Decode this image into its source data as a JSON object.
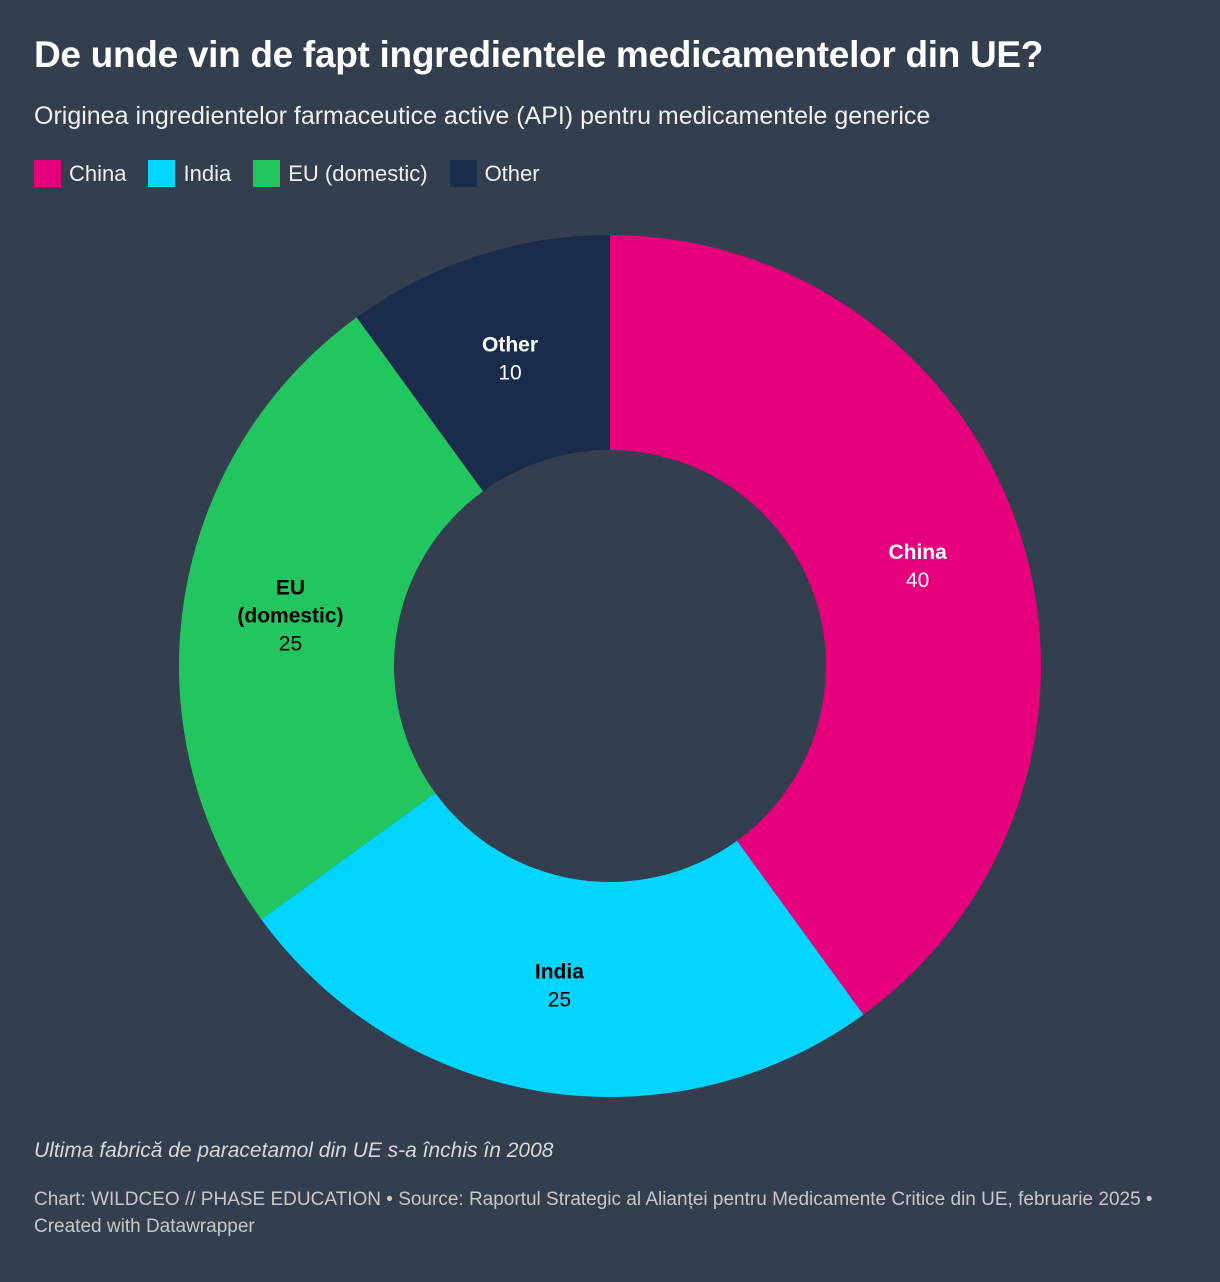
{
  "title": "De unde vin de fapt ingredientele medicamentelor din UE?",
  "subtitle": "Originea ingredientelor farmaceutice active (API) pentru medicamentele generice",
  "chart_data": {
    "type": "pie",
    "variant": "donut",
    "categories": [
      "China",
      "India",
      "EU (domestic)",
      "Other"
    ],
    "values": [
      40,
      25,
      25,
      10
    ],
    "slice_labels": [
      "China",
      "India",
      "EU\n(domestic)",
      "Other"
    ],
    "colors": [
      "#e6007e",
      "#00d4ff",
      "#22c55e",
      "#1b2b4b"
    ],
    "label_colors": [
      "#ffffff",
      "#000000",
      "#000000",
      "#ffffff"
    ],
    "legend_position": "top-left",
    "start": "top",
    "direction": "clockwise"
  },
  "note": "Ultima fabrică de paracetamol din UE s-a închis în 2008",
  "footer": "Chart: WILDCEO // PHASE EDUCATION • Source: Raportul Strategic al Alianței pentru Medicamente Critice din UE, februarie 2025 • Created with Datawrapper",
  "background": "#333e4e"
}
